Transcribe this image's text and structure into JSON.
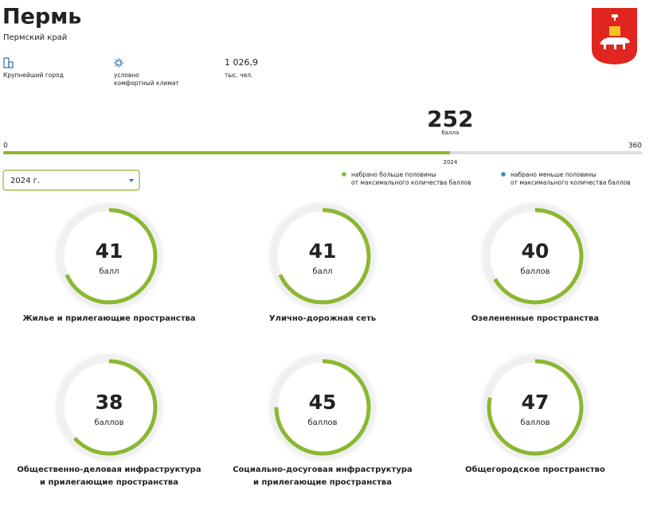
{
  "header": {
    "title": "Пермь",
    "subtitle": "Пермский край"
  },
  "facts": [
    {
      "lines": [
        "Крупнейший город"
      ]
    },
    {
      "lines": [
        "условно",
        "комфортный климат"
      ]
    },
    {
      "value": "1 026,9",
      "lines": [
        "тыс. чел."
      ]
    }
  ],
  "score": {
    "value": 252,
    "unit": "балла",
    "min": 0,
    "max": 360,
    "year": "2024"
  },
  "year_select": "2024 г.",
  "legend": [
    {
      "color": "#8ab832",
      "lines": [
        "набрано больше половины",
        "от максимального количества баллов"
      ]
    },
    {
      "color": "#3e8ec4",
      "lines": [
        "набрано меньше половины",
        "от максимального количества баллов"
      ]
    }
  ],
  "categories": [
    {
      "value": 41,
      "unit": "балл",
      "name": [
        "Жилье и прилегающие пространства"
      ]
    },
    {
      "value": 41,
      "unit": "балл",
      "name": [
        "Улично-дорожная сеть"
      ]
    },
    {
      "value": 40,
      "unit": "баллов",
      "name": [
        "Озелененные пространства"
      ]
    },
    {
      "value": 38,
      "unit": "баллов",
      "name": [
        "Общественно-деловая инфраструктура",
        "и прилегающие пространства"
      ]
    },
    {
      "value": 45,
      "unit": "баллов",
      "name": [
        "Социально-досуговая инфраструктура",
        "и прилегающие пространства"
      ]
    },
    {
      "value": 47,
      "unit": "баллов",
      "name": [
        "Общегородское пространство"
      ]
    }
  ]
}
